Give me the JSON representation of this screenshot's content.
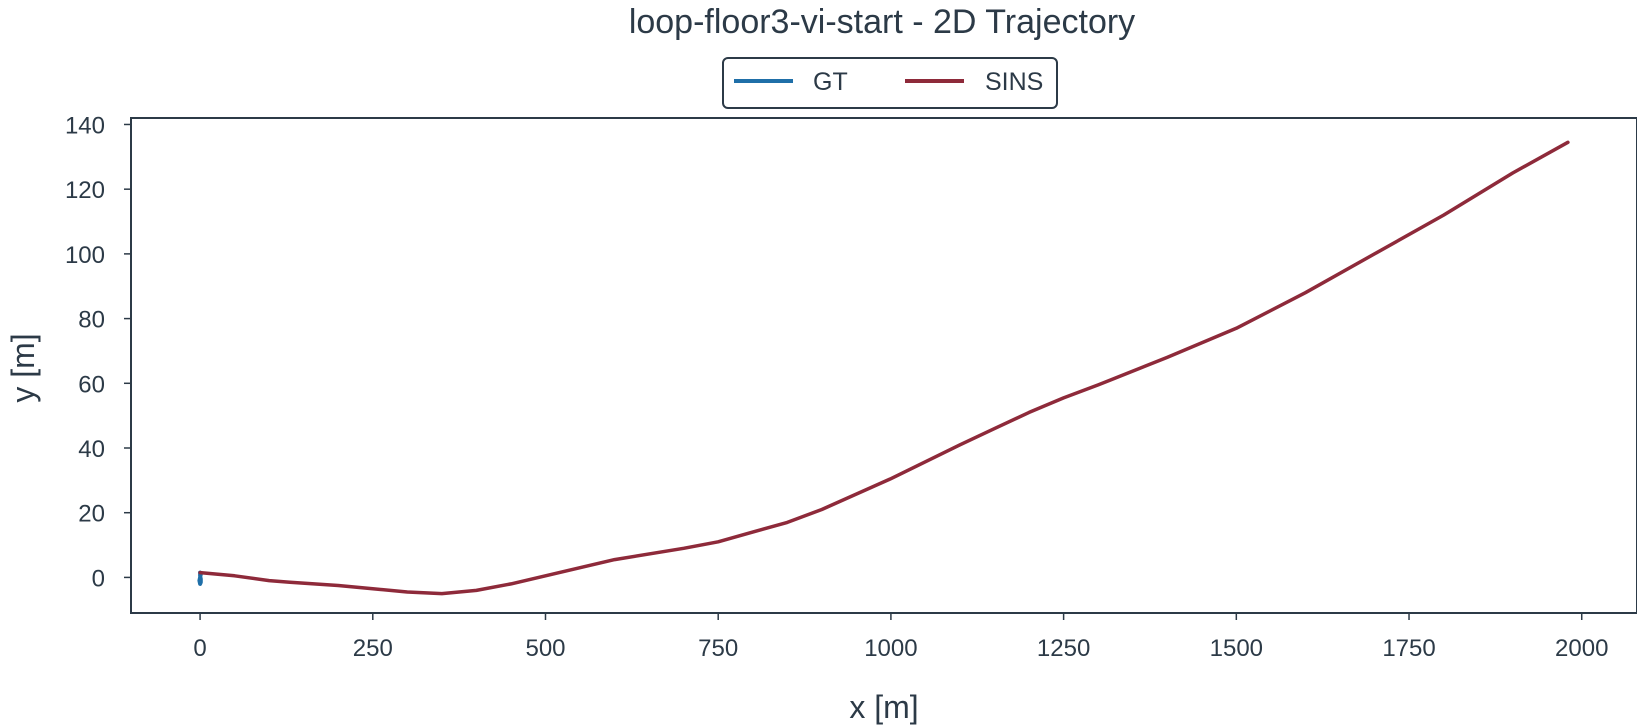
{
  "chart_data": {
    "type": "line",
    "title": "loop-floor3-vi-start - 2D Trajectory",
    "xlabel": "x [m]",
    "ylabel": "y [m]",
    "xlim": [
      -100,
      2080
    ],
    "ylim": [
      -11,
      142
    ],
    "xticks": [
      0,
      250,
      500,
      750,
      1000,
      1250,
      1500,
      1750,
      2000
    ],
    "yticks": [
      0,
      20,
      40,
      60,
      80,
      100,
      120,
      140
    ],
    "grid": false,
    "legend_position": "top-center",
    "series": [
      {
        "name": "GT",
        "color": "#1f6fa8",
        "x": [
          0,
          0,
          1,
          1,
          0,
          -1,
          0,
          1,
          0
        ],
        "y": [
          1.5,
          0.5,
          -0.5,
          -1.5,
          -2,
          -1,
          0,
          1,
          1.5
        ]
      },
      {
        "name": "SINS",
        "color": "#8e2a3a",
        "x": [
          0,
          50,
          100,
          130,
          200,
          250,
          300,
          350,
          400,
          450,
          500,
          550,
          600,
          700,
          750,
          800,
          850,
          900,
          1000,
          1100,
          1150,
          1200,
          1250,
          1300,
          1400,
          1500,
          1600,
          1700,
          1800,
          1900,
          1980
        ],
        "y": [
          1.5,
          0.5,
          -1,
          -1.5,
          -2.5,
          -3.5,
          -4.5,
          -5,
          -4,
          -2,
          0.5,
          3,
          5.5,
          9,
          11,
          14,
          17,
          21,
          30.5,
          41,
          46,
          51,
          55.5,
          59.5,
          68,
          77,
          88,
          100,
          112,
          125,
          134.5
        ]
      }
    ]
  }
}
